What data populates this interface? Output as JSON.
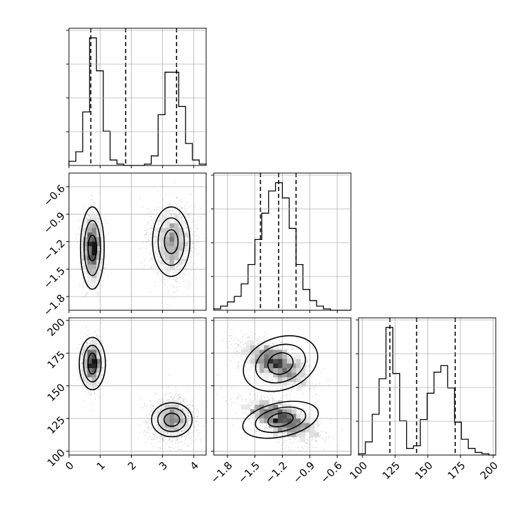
{
  "chart_data": {
    "type": "corner",
    "parameters": [
      {
        "range": [
          0,
          4.4
        ],
        "ticks": [
          0,
          1,
          2,
          3,
          4
        ],
        "tick_labels": [
          "0",
          "1",
          "2",
          "3",
          "4"
        ]
      },
      {
        "range": [
          -1.95,
          -0.45
        ],
        "ticks": [
          -1.8,
          -1.5,
          -1.2,
          -0.9,
          -0.6
        ],
        "tick_labels": [
          "−1.8",
          "−1.5",
          "−1.2",
          "−0.9",
          "−0.6"
        ]
      },
      {
        "range": [
          97,
          202
        ],
        "ticks": [
          100,
          125,
          150,
          175,
          200
        ],
        "tick_labels": [
          "100",
          "125",
          "150",
          "175",
          "200"
        ]
      }
    ],
    "histograms": [
      {
        "edges": [
          0,
          0.22,
          0.44,
          0.66,
          0.88,
          1.1,
          1.32,
          1.54,
          1.76,
          1.98,
          2.2,
          2.42,
          2.64,
          2.86,
          3.08,
          3.3,
          3.52,
          3.74,
          3.96,
          4.18,
          4.4
        ],
        "counts": [
          0.03,
          0.1,
          0.39,
          0.93,
          0.69,
          0.25,
          0.04,
          0.01,
          0,
          0,
          0,
          0.01,
          0.07,
          0.37,
          0.68,
          0.68,
          0.43,
          0.16,
          0.04,
          0.01
        ],
        "quantiles": [
          0.7,
          1.82,
          3.45
        ]
      },
      {
        "edges": [
          -1.95,
          -1.875,
          -1.8,
          -1.725,
          -1.65,
          -1.575,
          -1.5,
          -1.425,
          -1.35,
          -1.275,
          -1.2,
          -1.125,
          -1.05,
          -0.975,
          -0.9,
          -0.825,
          -0.75,
          -0.675,
          -0.6,
          -0.525,
          -0.45
        ],
        "counts": [
          0.01,
          0.03,
          0.06,
          0.1,
          0.19,
          0.33,
          0.51,
          0.7,
          0.86,
          0.92,
          0.81,
          0.59,
          0.33,
          0.15,
          0.07,
          0.03,
          0.01,
          0,
          0,
          0
        ],
        "quantiles": [
          -1.44,
          -1.24,
          -1.05
        ]
      },
      {
        "edges": [
          97,
          102.25,
          107.5,
          112.75,
          118,
          123.25,
          128.5,
          133.75,
          139,
          144.25,
          149.5,
          154.75,
          160,
          165.25,
          170.5,
          175.75,
          181,
          186.25,
          191.5,
          196.75,
          202
        ],
        "counts": [
          0.01,
          0.1,
          0.31,
          0.58,
          0.97,
          0.62,
          0.26,
          0.05,
          0.07,
          0.27,
          0.47,
          0.63,
          0.68,
          0.51,
          0.25,
          0.12,
          0.05,
          0.02,
          0.01,
          0
        ],
        "quantiles": [
          121,
          141.5,
          171
        ]
      }
    ],
    "clusters": [
      {
        "m0": 0.75,
        "m1": -1.27,
        "m2": 167,
        "s0": 0.17,
        "s1": 0.2,
        "s2": 9,
        "weight": 0.5
      },
      {
        "m0": 3.3,
        "m1": -1.2,
        "m2": 124,
        "s0": 0.33,
        "s1": 0.2,
        "s2": 8,
        "weight": 0.5
      }
    ],
    "contours_2d": {
      "0_1": [
        {
          "c": [
            0.75,
            -1.27
          ],
          "r": [
            [
              0.14,
              0.14
            ],
            [
              0.26,
              0.3
            ],
            [
              0.38,
              0.45
            ]
          ]
        },
        {
          "c": [
            3.28,
            -1.2
          ],
          "r": [
            [
              0.22,
              0.13
            ],
            [
              0.42,
              0.26
            ],
            [
              0.6,
              0.38
            ]
          ]
        }
      ],
      "0_2": [
        {
          "c": [
            0.75,
            167
          ],
          "r": [
            [
              0.14,
              8
            ],
            [
              0.28,
              14
            ],
            [
              0.42,
              20
            ]
          ]
        },
        {
          "c": [
            3.3,
            124
          ],
          "r": [
            [
              0.25,
              5
            ],
            [
              0.45,
              9
            ],
            [
              0.65,
              13
            ]
          ]
        }
      ],
      "1_2": [
        {
          "c": [
            -1.22,
            167
          ],
          "r": [
            [
              0.14,
              8
            ],
            [
              0.28,
              14
            ],
            [
              0.42,
              20
            ]
          ],
          "rot": -20
        },
        {
          "c": [
            -1.22,
            124
          ],
          "r": [
            [
              0.14,
              5
            ],
            [
              0.28,
              9
            ],
            [
              0.42,
              13
            ]
          ],
          "rot": -12
        }
      ]
    },
    "grid": true
  }
}
